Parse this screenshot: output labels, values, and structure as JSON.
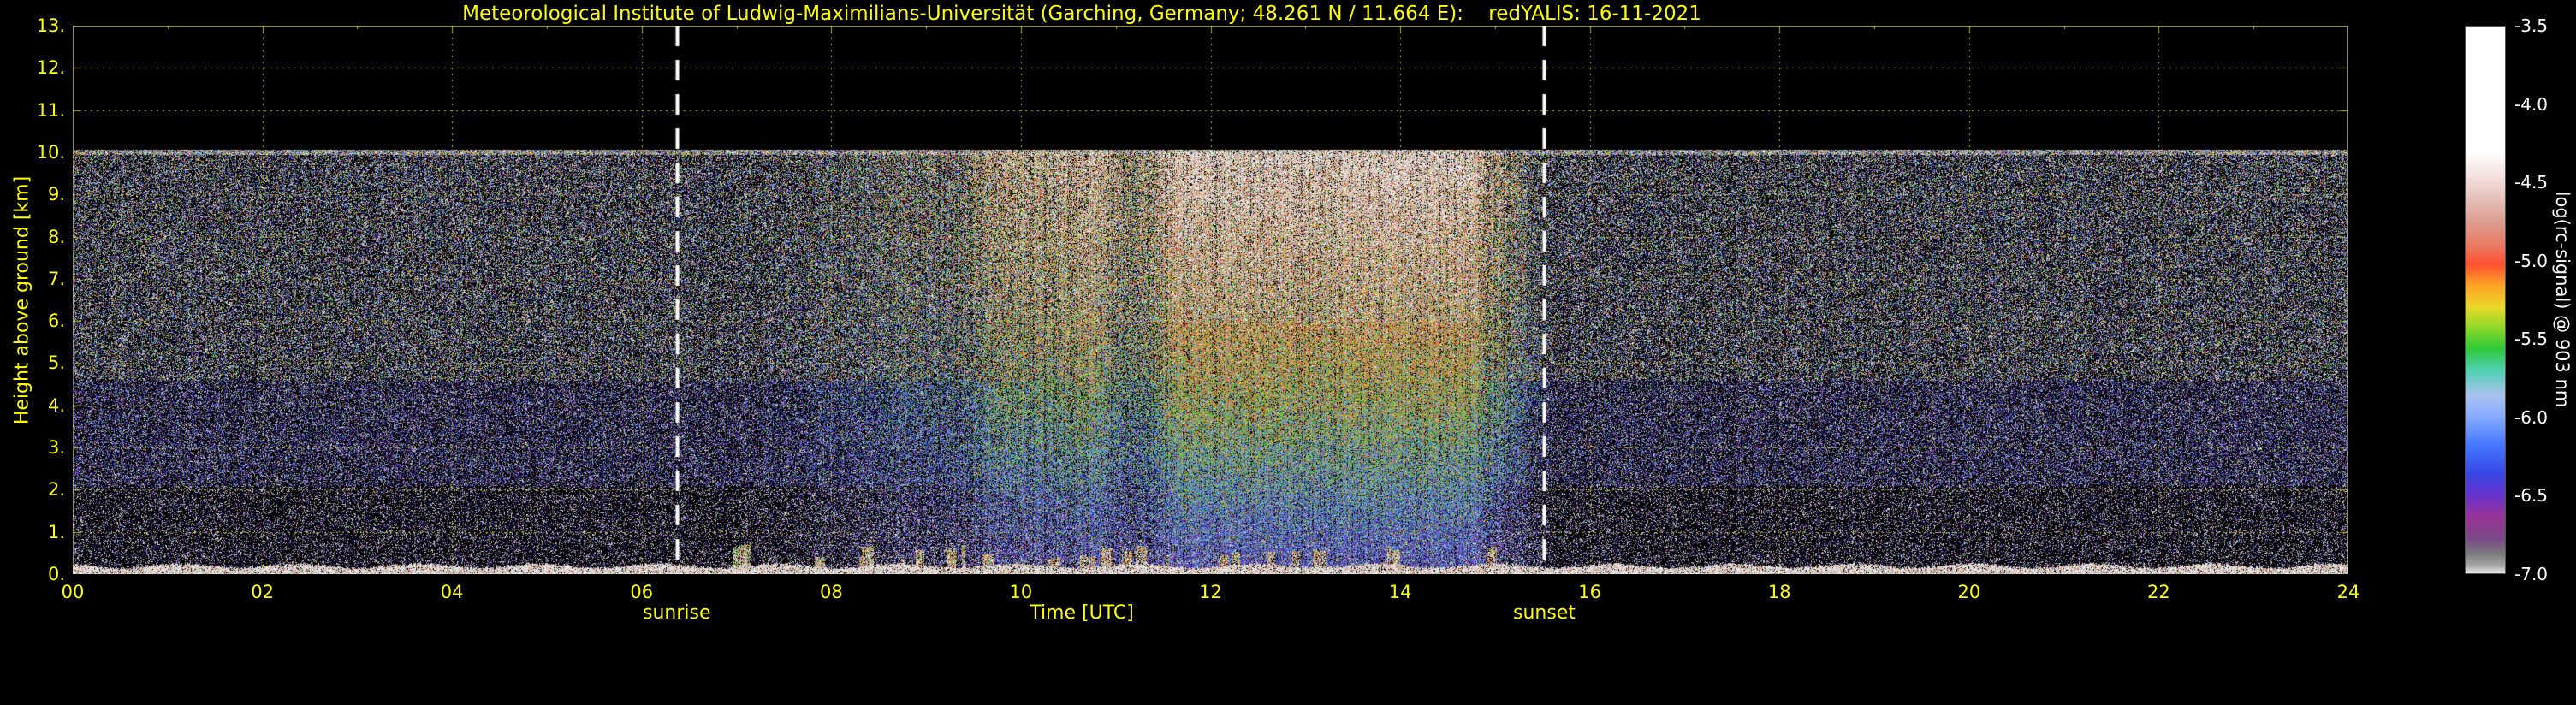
{
  "chart_data": {
    "type": "heatmap",
    "title": "Meteorological Institute of Ludwig-Maximilians-Universität (Garching, Germany; 48.261 N / 11.664 E):    redYALIS: 16-11-2021",
    "institute": "Meteorological Institute of Ludwig-Maximilians-Universität",
    "station": "Garching, Germany",
    "coordinates": "48.261 N / 11.664 E",
    "instrument": "redYALIS",
    "date": "16-11-2021",
    "xlabel": "Time [UTC]",
    "ylabel": "Height above ground [km]",
    "x_range_hours": [
      0,
      24
    ],
    "x_tick_labels": [
      "00",
      "02",
      "04",
      "06",
      "08",
      "10",
      "12",
      "14",
      "16",
      "18",
      "20",
      "22",
      "24"
    ],
    "y_range_km": [
      0,
      13
    ],
    "y_tick_labels": [
      "0.",
      "1.",
      "2.",
      "3.",
      "4.",
      "5.",
      "6.",
      "7.",
      "8.",
      "9.",
      "10.",
      "11.",
      "12.",
      "13."
    ],
    "grid": {
      "style": "dotted",
      "color": "#ebeb00",
      "x_step_hours": 2,
      "y_step_km": 1
    },
    "colorbar": {
      "label": "log(rc-signal) @ 903 nm",
      "range": [
        -7.0,
        -3.5
      ],
      "tick_labels": [
        "-3.5",
        "-4.0",
        "-4.5",
        "-5.0",
        "-5.5",
        "-6.0",
        "-6.5",
        "-7.0"
      ],
      "tick_values": [
        -3.5,
        -4.0,
        -4.5,
        -5.0,
        -5.5,
        -6.0,
        -6.5,
        -7.0
      ],
      "stops": [
        [
          -7.0,
          "#e8e8e8"
        ],
        [
          -6.95,
          "#a8a8a8"
        ],
        [
          -6.88,
          "#7c7c7c"
        ],
        [
          -6.78,
          "#7a4a86"
        ],
        [
          -6.64,
          "#993399"
        ],
        [
          -6.5,
          "#6633cc"
        ],
        [
          -6.36,
          "#3747e6"
        ],
        [
          -6.18,
          "#4477ff"
        ],
        [
          -6.0,
          "#85aaff"
        ],
        [
          -5.86,
          "#a9c3ef"
        ],
        [
          -5.7,
          "#4fd0b0"
        ],
        [
          -5.56,
          "#2fc937"
        ],
        [
          -5.42,
          "#93d926"
        ],
        [
          -5.3,
          "#e8d929"
        ],
        [
          -5.16,
          "#ffa426"
        ],
        [
          -5.02,
          "#ff5030"
        ],
        [
          -4.9,
          "#e87b63"
        ],
        [
          -4.76,
          "#dd9b8d"
        ],
        [
          -4.62,
          "#e4bcb4"
        ],
        [
          -4.48,
          "#f1dcd8"
        ],
        [
          -4.3,
          "#ffffff"
        ],
        [
          -3.5,
          "#ffffff"
        ]
      ]
    },
    "annotations": {
      "sunrise": {
        "label": "sunrise",
        "time_utc": 6.37
      },
      "sunset": {
        "label": "sunset",
        "time_utc": 15.52
      }
    },
    "data_extent": {
      "detection_top_km": 10.0,
      "surface_band_top_km": 0.25
    },
    "noise_model": {
      "plume_peak_utc": 12.8,
      "plume_sigma_h": 2.6,
      "night_layers": [
        {
          "h_min": 0.25,
          "h_max": 2.1,
          "s": -6.9,
          "sigma": 0.55,
          "density": 0.3
        },
        {
          "h_min": 2.1,
          "h_max": 4.6,
          "s": -6.55,
          "sigma": 0.5,
          "density": 0.46
        },
        {
          "h_min": 4.6,
          "h_max": 10.0,
          "s": -6.25,
          "sigma": 0.95,
          "density": 0.5
        }
      ],
      "day_profile": {
        "s0": -6.75,
        "amp": 2.55,
        "pow": 0.75
      },
      "surface_band_signal": -4.1
    }
  },
  "colors": {
    "background": "#000000",
    "axis_text": "#ffff00",
    "grid": "#ebeb00",
    "colorbar_text": "#ffffff",
    "sun_line": "#ffffff"
  }
}
